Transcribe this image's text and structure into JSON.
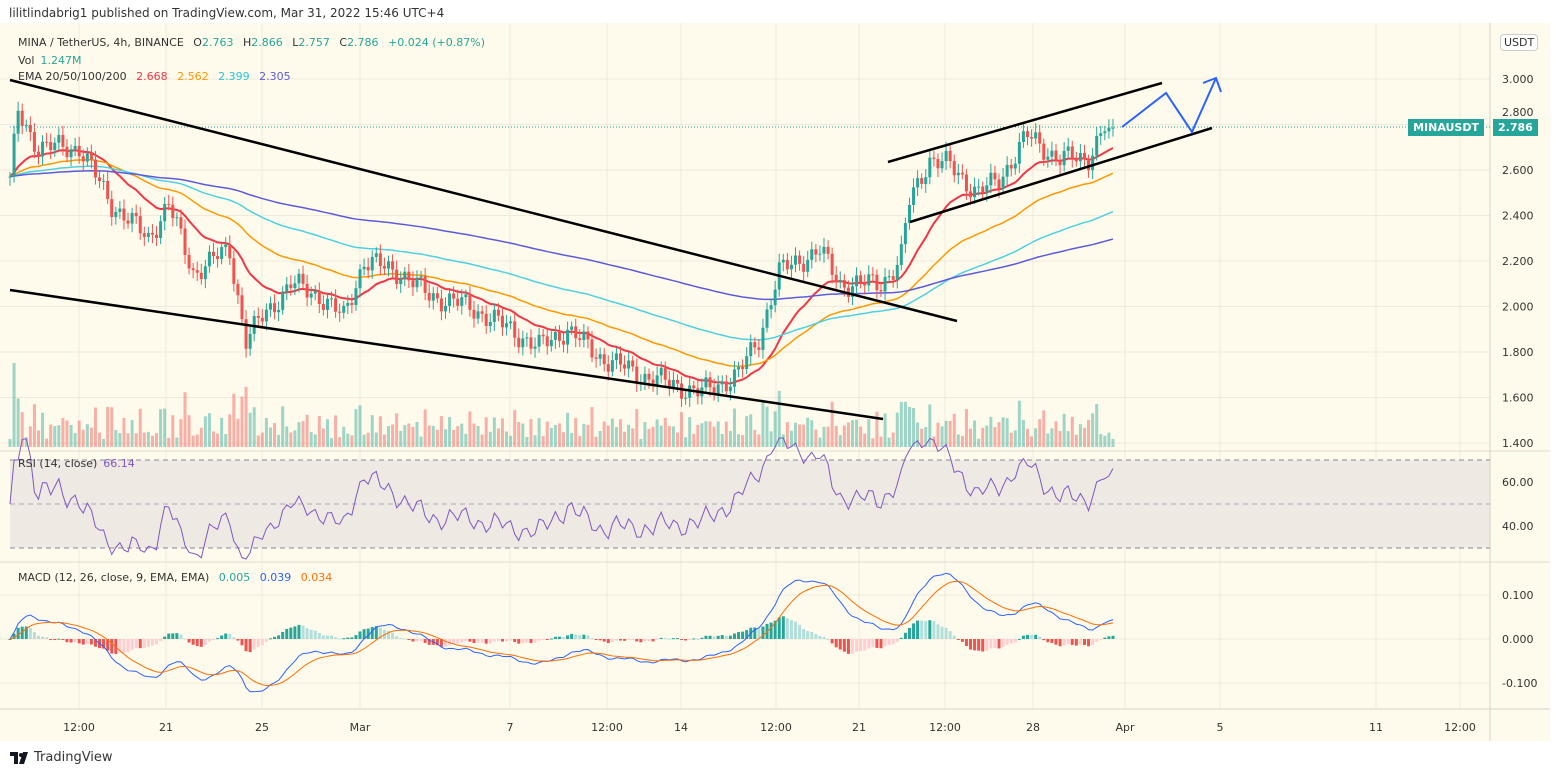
{
  "header": {
    "published": "lilitlindabrig1 published on TradingView.com, Mar 31, 2022 15:46 UTC+4"
  },
  "legend": {
    "symbol": "MINA / TetherUS, 4h, BINANCE",
    "open_label": "O",
    "open": "2.763",
    "high_label": "H",
    "high": "2.866",
    "low_label": "L",
    "low": "2.757",
    "close_label": "C",
    "close": "2.786",
    "change": "+0.024 (+0.87%)",
    "vol_label": "Vol",
    "vol": "1.247M",
    "ema_label": "EMA 20/50/100/200",
    "ema20": "2.668",
    "ema50": "2.562",
    "ema100": "2.399",
    "ema200": "2.305",
    "rsi_label": "RSI (14, close)",
    "rsi": "66.14",
    "macd_label": "MACD (12, 26, close, 9, EMA, EMA)",
    "macd_hist": "0.005",
    "macd": "0.039",
    "macd_signal": "0.034"
  },
  "price_axis": {
    "currency": "USDT",
    "symbol_tag": "MINAUSDT",
    "last_price": "2.786"
  },
  "footer": {
    "brand": "TradingView"
  },
  "colors": {
    "up": "#26a69a",
    "down": "#ef5350",
    "ema20": "#f23645",
    "ema50": "#ff9800",
    "ema100": "#4dd0e1",
    "ema200": "#5b5bdc",
    "rsi": "#7e57c2",
    "macd": "#2962ff",
    "signal": "#ff6d00",
    "background": "#fffbec",
    "annotation": "#2962ff"
  },
  "chart_data": {
    "type": "candlestick",
    "interval": "4h",
    "price_ticks": [
      "3.000",
      "2.800",
      "2.600",
      "2.400",
      "2.200",
      "2.000",
      "1.800",
      "1.600",
      "1.400"
    ],
    "rsi_ticks": [
      "60.00",
      "40.00"
    ],
    "macd_ticks": [
      "0.100",
      "0.000",
      "-0.100"
    ],
    "time_ticks": [
      "12:00",
      "21",
      "25",
      "Mar",
      "7",
      "12:00",
      "14",
      "12:00",
      "21",
      "12:00",
      "28",
      "Apr",
      "5",
      "11",
      "12:00"
    ],
    "approx_close": [
      [
        "2022-02-14 16",
        "2.55"
      ],
      [
        "2022-02-15 00",
        "2.85"
      ],
      [
        "2022-02-15 20",
        "2.70"
      ],
      [
        "2022-02-17 12",
        "2.70"
      ],
      [
        "2022-02-18 20",
        "2.45"
      ],
      [
        "2022-02-20 08",
        "2.30"
      ],
      [
        "2022-02-21 04",
        "2.45"
      ],
      [
        "2022-02-22 04",
        "2.15"
      ],
      [
        "2022-02-23 16",
        "2.25"
      ],
      [
        "2022-02-24 08",
        "1.85"
      ],
      [
        "2022-02-25 00",
        "1.95"
      ],
      [
        "2022-02-26 04",
        "2.10"
      ],
      [
        "2022-02-27 08",
        "2.05"
      ],
      [
        "2022-02-28 08",
        "1.95"
      ],
      [
        "2022-03-01 04",
        "2.20"
      ],
      [
        "2022-03-02 16",
        "2.15"
      ],
      [
        "2022-03-03 20",
        "2.05"
      ],
      [
        "2022-03-05 12",
        "2.00"
      ],
      [
        "2022-03-07 04",
        "1.90"
      ],
      [
        "2022-03-08 08",
        "1.82"
      ],
      [
        "2022-03-09 12",
        "1.90"
      ],
      [
        "2022-03-10 20",
        "1.78"
      ],
      [
        "2022-03-12 12",
        "1.70"
      ],
      [
        "2022-03-15 00",
        "1.62"
      ],
      [
        "2022-03-16 12",
        "1.70"
      ],
      [
        "2022-03-17 08",
        "1.85"
      ],
      [
        "2022-03-18 04",
        "2.15"
      ],
      [
        "2022-03-19 00",
        "2.20"
      ],
      [
        "2022-03-19 20",
        "2.25"
      ],
      [
        "2022-03-20 16",
        "2.10"
      ],
      [
        "2022-03-22 08",
        "2.10"
      ],
      [
        "2022-03-23 04",
        "2.20"
      ],
      [
        "2022-03-23 12",
        "2.45"
      ],
      [
        "2022-03-24 08",
        "2.65"
      ],
      [
        "2022-03-25 04",
        "2.62"
      ],
      [
        "2022-03-26 08",
        "2.50"
      ],
      [
        "2022-03-27 04",
        "2.55"
      ],
      [
        "2022-03-28 08",
        "2.75"
      ],
      [
        "2022-03-29 16",
        "2.65"
      ],
      [
        "2022-03-30 20",
        "2.65"
      ],
      [
        "2022-03-31 12",
        "2.786"
      ]
    ]
  }
}
